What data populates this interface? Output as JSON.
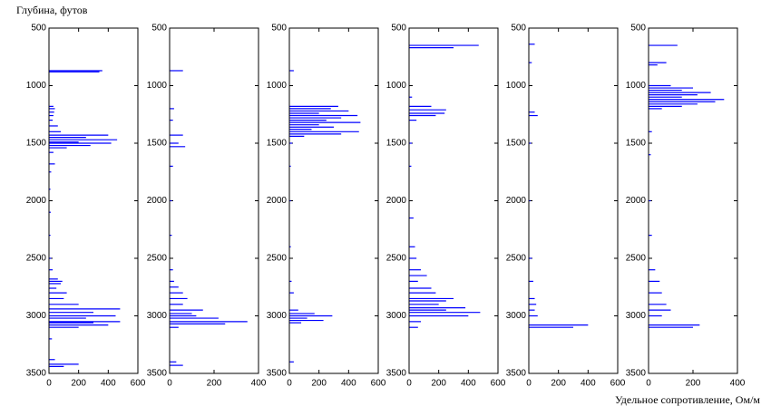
{
  "chart_data": [
    {
      "type": "bar",
      "orientation": "horizontal",
      "ylabel": "Глубина, футов",
      "color": "#0000ff",
      "xlim": [
        0,
        600
      ],
      "xticks": [
        0,
        200,
        400,
        600
      ],
      "ylim": [
        500,
        3500
      ],
      "yticks": [
        500,
        1000,
        1500,
        2000,
        2500,
        3000,
        3500
      ],
      "y_inverted": true,
      "y": [
        870,
        880,
        1180,
        1200,
        1230,
        1260,
        1300,
        1350,
        1400,
        1430,
        1450,
        1470,
        1490,
        1500,
        1520,
        1540,
        1580,
        1680,
        1750,
        1900,
        2100,
        2300,
        2500,
        2600,
        2680,
        2700,
        2720,
        2760,
        2800,
        2850,
        2900,
        2940,
        2970,
        3000,
        3020,
        3050,
        3060,
        3080,
        3100,
        3200,
        3380,
        3420,
        3440
      ],
      "values": [
        360,
        340,
        30,
        40,
        35,
        30,
        25,
        60,
        80,
        400,
        250,
        460,
        200,
        420,
        280,
        120,
        30,
        40,
        15,
        10,
        12,
        10,
        15,
        25,
        60,
        90,
        80,
        50,
        120,
        100,
        200,
        480,
        300,
        450,
        250,
        480,
        300,
        400,
        200,
        20,
        40,
        200,
        100
      ]
    },
    {
      "type": "bar",
      "orientation": "horizontal",
      "color": "#0000ff",
      "xlim": [
        0,
        400
      ],
      "xticks": [
        0,
        200,
        400
      ],
      "ylim": [
        500,
        3500
      ],
      "yticks": [
        500,
        1000,
        1500,
        2000,
        2500,
        3000,
        3500
      ],
      "y_inverted": true,
      "y": [
        870,
        1200,
        1300,
        1430,
        1500,
        1530,
        1700,
        2000,
        2300,
        2600,
        2700,
        2750,
        2800,
        2850,
        2900,
        2950,
        2980,
        3000,
        3020,
        3050,
        3070,
        3100,
        3400,
        3430
      ],
      "values": [
        60,
        20,
        15,
        60,
        40,
        70,
        15,
        10,
        10,
        15,
        20,
        40,
        60,
        80,
        60,
        150,
        100,
        120,
        220,
        350,
        250,
        40,
        30,
        60
      ]
    },
    {
      "type": "bar",
      "orientation": "horizontal",
      "color": "#0000ff",
      "xlim": [
        0,
        600
      ],
      "xticks": [
        0,
        200,
        400,
        600
      ],
      "ylim": [
        500,
        3500
      ],
      "yticks": [
        500,
        1000,
        1500,
        2000,
        2500,
        3000,
        3500
      ],
      "y_inverted": true,
      "y": [
        870,
        1180,
        1200,
        1220,
        1240,
        1260,
        1280,
        1300,
        1320,
        1340,
        1360,
        1380,
        1400,
        1420,
        1440,
        1500,
        1700,
        2000,
        2400,
        2700,
        2800,
        2950,
        2980,
        3000,
        3020,
        3040,
        3060,
        3400
      ],
      "values": [
        30,
        330,
        280,
        400,
        200,
        460,
        350,
        250,
        480,
        200,
        300,
        150,
        470,
        350,
        100,
        20,
        10,
        10,
        10,
        15,
        30,
        60,
        170,
        290,
        120,
        230,
        80,
        30
      ]
    },
    {
      "type": "bar",
      "orientation": "horizontal",
      "color": "#0000ff",
      "xlim": [
        0,
        600
      ],
      "xticks": [
        0,
        200,
        400,
        600
      ],
      "ylim": [
        500,
        3500
      ],
      "yticks": [
        500,
        1000,
        1500,
        2000,
        2500,
        3000,
        3500
      ],
      "y_inverted": true,
      "y": [
        650,
        670,
        1100,
        1180,
        1210,
        1240,
        1260,
        1300,
        1500,
        1700,
        2150,
        2400,
        2500,
        2600,
        2650,
        2700,
        2760,
        2800,
        2850,
        2870,
        2900,
        2930,
        2950,
        2970,
        3000,
        3050,
        3100
      ],
      "values": [
        470,
        300,
        20,
        150,
        250,
        240,
        180,
        50,
        20,
        15,
        30,
        40,
        50,
        80,
        120,
        60,
        150,
        180,
        300,
        250,
        200,
        380,
        250,
        480,
        400,
        80,
        60
      ]
    },
    {
      "type": "bar",
      "orientation": "horizontal",
      "color": "#0000ff",
      "xlim": [
        0,
        600
      ],
      "xticks": [
        0,
        200,
        400,
        600
      ],
      "ylim": [
        500,
        3500
      ],
      "yticks": [
        500,
        1000,
        1500,
        2000,
        2500,
        3000,
        3500
      ],
      "y_inverted": true,
      "y": [
        640,
        800,
        1230,
        1260,
        1500,
        2000,
        2500,
        2700,
        2850,
        2900,
        2950,
        3000,
        3080,
        3100
      ],
      "values": [
        40,
        20,
        40,
        60,
        15,
        10,
        20,
        30,
        40,
        50,
        40,
        60,
        400,
        300
      ]
    },
    {
      "type": "bar",
      "orientation": "horizontal",
      "xlabel": "Удельное сопротивление, Ом/м",
      "color": "#0000ff",
      "xlim": [
        0,
        400
      ],
      "xticks": [
        0,
        200,
        400
      ],
      "ylim": [
        500,
        3500
      ],
      "yticks": [
        500,
        1000,
        1500,
        2000,
        2500,
        3000,
        3500
      ],
      "y_inverted": true,
      "y": [
        650,
        800,
        820,
        1000,
        1020,
        1040,
        1060,
        1080,
        1100,
        1120,
        1140,
        1160,
        1180,
        1200,
        1400,
        1600,
        2000,
        2300,
        2600,
        2700,
        2800,
        2900,
        2950,
        3000,
        3080,
        3100
      ],
      "values": [
        130,
        80,
        40,
        100,
        200,
        150,
        280,
        220,
        150,
        340,
        300,
        220,
        150,
        60,
        15,
        10,
        10,
        15,
        30,
        50,
        60,
        80,
        100,
        60,
        230,
        200
      ]
    }
  ]
}
